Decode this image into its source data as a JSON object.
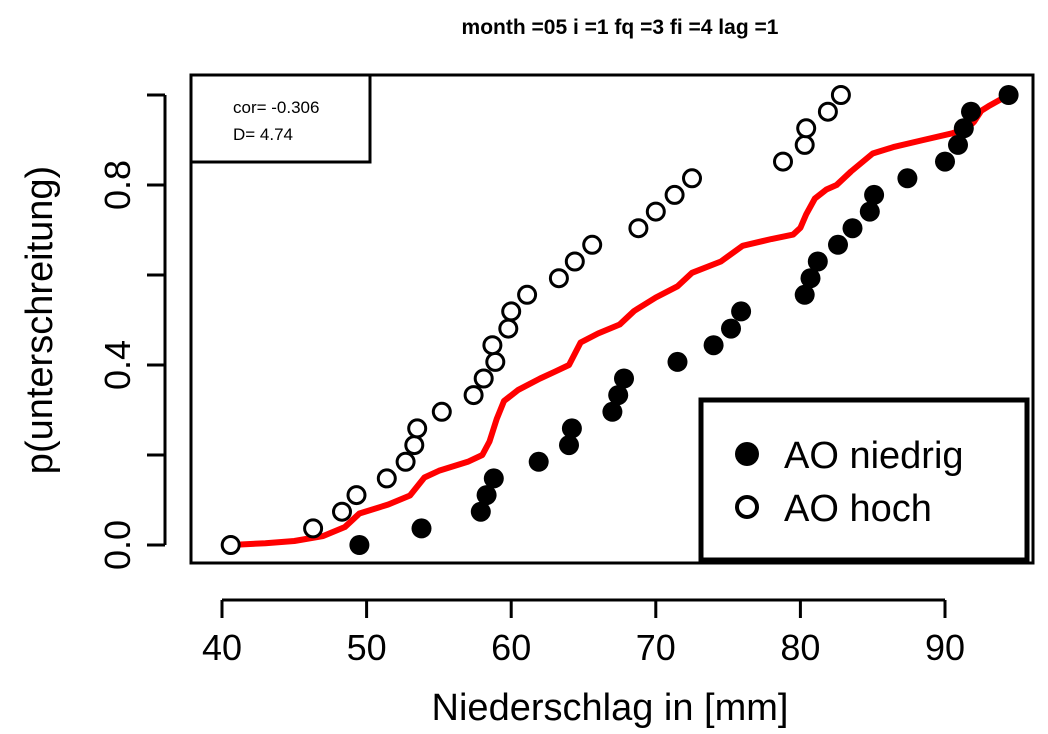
{
  "chart_data": {
    "type": "scatter",
    "title": "month =05 i =1 fq =3 fi =4 lag =1",
    "xlabel": "Niederschlag in [mm]",
    "ylabel": "p(unterschreitung)",
    "xlim": [
      40,
      95
    ],
    "ylim": [
      0,
      1
    ],
    "x_ticks": [
      "40",
      "50",
      "60",
      "70",
      "80",
      "90"
    ],
    "y_ticks": [
      "0.0",
      "0.4",
      "0.8"
    ],
    "stats": {
      "cor": "cor= -0.306",
      "D": "D= 4.74"
    },
    "legend": {
      "position": "bottom-right",
      "entries": [
        "AO niedrig",
        "AO hoch"
      ]
    },
    "colors": {
      "ecdf_line": "#ff0000",
      "points": "#000000"
    },
    "series": [
      {
        "name": "AO niedrig",
        "marker": "filled-circle",
        "points": [
          [
            49.5,
            0.0
          ],
          [
            53.8,
            0.037
          ],
          [
            57.9,
            0.074
          ],
          [
            58.3,
            0.111
          ],
          [
            58.8,
            0.148
          ],
          [
            61.9,
            0.185
          ],
          [
            64.0,
            0.222
          ],
          [
            64.2,
            0.259
          ],
          [
            67.0,
            0.296
          ],
          [
            67.4,
            0.333
          ],
          [
            67.8,
            0.37
          ],
          [
            71.5,
            0.407
          ],
          [
            74.0,
            0.444
          ],
          [
            75.2,
            0.481
          ],
          [
            75.9,
            0.519
          ],
          [
            80.3,
            0.556
          ],
          [
            80.7,
            0.593
          ],
          [
            81.2,
            0.63
          ],
          [
            82.6,
            0.667
          ],
          [
            83.6,
            0.704
          ],
          [
            84.8,
            0.741
          ],
          [
            85.1,
            0.778
          ],
          [
            87.4,
            0.815
          ],
          [
            90.0,
            0.852
          ],
          [
            90.9,
            0.889
          ],
          [
            91.3,
            0.926
          ],
          [
            91.8,
            0.963
          ],
          [
            94.4,
            1.0
          ]
        ]
      },
      {
        "name": "AO hoch",
        "marker": "open-circle",
        "points": [
          [
            40.6,
            0.0
          ],
          [
            46.3,
            0.037
          ],
          [
            48.3,
            0.074
          ],
          [
            49.3,
            0.111
          ],
          [
            51.4,
            0.148
          ],
          [
            52.7,
            0.185
          ],
          [
            53.3,
            0.222
          ],
          [
            53.5,
            0.259
          ],
          [
            55.2,
            0.296
          ],
          [
            57.4,
            0.333
          ],
          [
            58.1,
            0.37
          ],
          [
            58.9,
            0.407
          ],
          [
            58.7,
            0.444
          ],
          [
            59.8,
            0.481
          ],
          [
            60.0,
            0.519
          ],
          [
            61.1,
            0.556
          ],
          [
            63.3,
            0.593
          ],
          [
            64.4,
            0.63
          ],
          [
            65.6,
            0.667
          ],
          [
            68.8,
            0.704
          ],
          [
            70.0,
            0.741
          ],
          [
            71.3,
            0.778
          ],
          [
            72.5,
            0.815
          ],
          [
            78.8,
            0.852
          ],
          [
            80.3,
            0.889
          ],
          [
            80.4,
            0.926
          ],
          [
            81.9,
            0.963
          ],
          [
            82.8,
            1.0
          ]
        ]
      },
      {
        "name": "",
        "marker": "line",
        "points": [
          [
            40.6,
            0.0
          ],
          [
            43.0,
            0.004
          ],
          [
            45.0,
            0.009
          ],
          [
            47.0,
            0.02
          ],
          [
            48.5,
            0.04
          ],
          [
            49.5,
            0.07
          ],
          [
            51.5,
            0.09
          ],
          [
            53.0,
            0.11
          ],
          [
            54.0,
            0.15
          ],
          [
            55.0,
            0.165
          ],
          [
            57.0,
            0.185
          ],
          [
            58.0,
            0.2
          ],
          [
            58.5,
            0.23
          ],
          [
            59.0,
            0.28
          ],
          [
            59.5,
            0.32
          ],
          [
            60.5,
            0.345
          ],
          [
            62.0,
            0.37
          ],
          [
            63.0,
            0.385
          ],
          [
            64.0,
            0.4
          ],
          [
            64.8,
            0.45
          ],
          [
            66.0,
            0.47
          ],
          [
            67.5,
            0.49
          ],
          [
            68.5,
            0.52
          ],
          [
            70.0,
            0.55
          ],
          [
            71.5,
            0.575
          ],
          [
            72.5,
            0.605
          ],
          [
            74.5,
            0.63
          ],
          [
            76.0,
            0.665
          ],
          [
            78.0,
            0.68
          ],
          [
            79.5,
            0.69
          ],
          [
            80.0,
            0.705
          ],
          [
            80.4,
            0.735
          ],
          [
            81.0,
            0.77
          ],
          [
            81.8,
            0.79
          ],
          [
            82.5,
            0.8
          ],
          [
            83.5,
            0.83
          ],
          [
            85.0,
            0.87
          ],
          [
            86.5,
            0.885
          ],
          [
            88.5,
            0.9
          ],
          [
            90.5,
            0.915
          ],
          [
            91.5,
            0.925
          ],
          [
            92.0,
            0.94
          ],
          [
            92.5,
            0.965
          ],
          [
            93.0,
            0.975
          ],
          [
            94.4,
            1.0
          ]
        ]
      }
    ]
  }
}
